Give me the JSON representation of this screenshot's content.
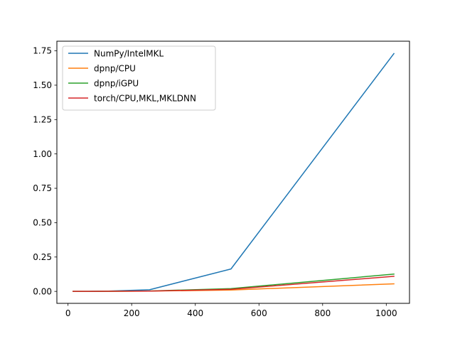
{
  "chart_data": {
    "type": "line",
    "title": "",
    "xlabel": "",
    "ylabel": "",
    "xlim": [
      -35,
      1073
    ],
    "ylim": [
      -0.087,
      1.82
    ],
    "xticks": [
      0,
      200,
      400,
      600,
      800,
      1000
    ],
    "yticks": [
      0.0,
      0.25,
      0.5,
      0.75,
      1.0,
      1.25,
      1.5,
      1.75
    ],
    "xtick_labels": [
      "0",
      "200",
      "400",
      "600",
      "800",
      "1000"
    ],
    "ytick_labels": [
      "0.00",
      "0.25",
      "0.50",
      "0.75",
      "1.00",
      "1.25",
      "1.50",
      "1.75"
    ],
    "grid": false,
    "legend_position": "top-left",
    "x": [
      16,
      32,
      64,
      128,
      256,
      512,
      1024
    ],
    "series": [
      {
        "name": "NumPy/IntelMKL",
        "color": "#1f77b4",
        "values": [
          0.0,
          0.0,
          0.0005,
          0.002,
          0.012,
          0.163,
          1.73
        ]
      },
      {
        "name": "dpnp/CPU",
        "color": "#ff7f0e",
        "values": [
          0.0,
          0.0,
          0.0003,
          0.0008,
          0.002,
          0.01,
          0.055
        ]
      },
      {
        "name": "dpnp/iGPU",
        "color": "#2ca02c",
        "values": [
          0.0,
          0.0,
          0.0003,
          0.001,
          0.003,
          0.02,
          0.126
        ]
      },
      {
        "name": "torch/CPU,MKL,MKLDNN",
        "color": "#d62728",
        "values": [
          0.0,
          0.0,
          0.0002,
          0.0008,
          0.002,
          0.015,
          0.11
        ]
      }
    ]
  }
}
